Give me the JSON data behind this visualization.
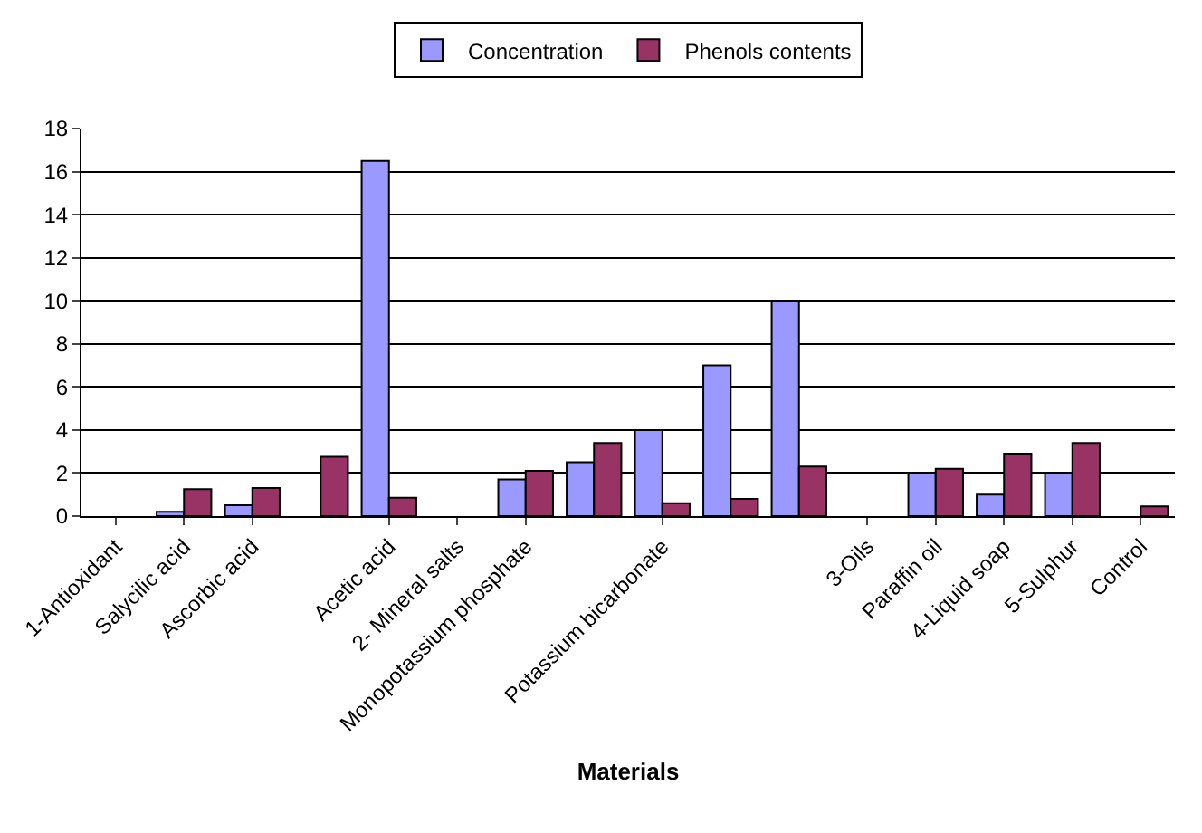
{
  "chart_data": {
    "type": "bar",
    "xlabel": "Materials",
    "categories": [
      "1-Antioxidant",
      "Salycilic acid",
      "Ascorbic acid",
      null,
      "Acetic acid",
      "2- Mineral salts",
      "Monopotassium phosphate",
      null,
      "Potassium bicarbonate",
      null,
      null,
      "3-Oils",
      "Paraffin oil",
      "4-Liquid soap",
      "5-Sulphur",
      "Control"
    ],
    "series": [
      {
        "name": "Concentration",
        "color": "#9999ff",
        "values": [
          null,
          0.2,
          0.5,
          null,
          16.5,
          null,
          1.7,
          2.5,
          4,
          7,
          10,
          null,
          2,
          1,
          2,
          null
        ]
      },
      {
        "name": "Phenols contents",
        "color": "#993366",
        "values": [
          null,
          1.25,
          1.3,
          2.75,
          0.85,
          null,
          2.1,
          3.4,
          0.6,
          0.8,
          2.3,
          null,
          2.2,
          2.9,
          3.4,
          0.45
        ]
      }
    ],
    "ylim": [
      0,
      18
    ],
    "yticks": [
      0,
      2,
      4,
      6,
      8,
      10,
      12,
      14,
      16,
      18
    ],
    "grid": "y",
    "legend": "top"
  }
}
